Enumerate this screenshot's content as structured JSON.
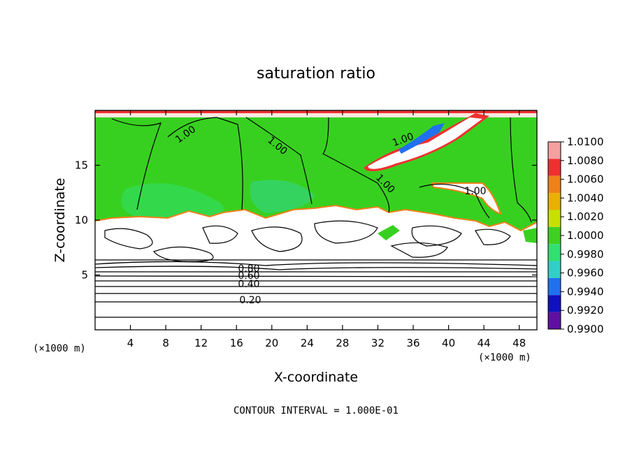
{
  "chart_data": {
    "type": "heatmap",
    "title": "saturation ratio",
    "xlabel": "X-coordinate",
    "ylabel": "Z-coordinate",
    "x_unit_label": "(×1000 m)",
    "x_unit_label_left": "(×1000 m)",
    "xlim": [
      0,
      50
    ],
    "ylim": [
      0,
      20
    ],
    "x_ticks": [
      "4",
      "8",
      "12",
      "16",
      "20",
      "24",
      "28",
      "32",
      "36",
      "40",
      "44",
      "48"
    ],
    "y_ticks": [
      "5",
      "10",
      "15"
    ],
    "footer": "CONTOUR INTERVAL = 1.000E-01",
    "colorbar": {
      "levels": [
        "1.0100",
        "1.0080",
        "1.0060",
        "1.0040",
        "1.0020",
        "1.0000",
        "0.9980",
        "0.9960",
        "0.9940",
        "0.9920",
        "0.9900"
      ],
      "colors": [
        "#f4a0a0",
        "#f03030",
        "#f08018",
        "#e8b000",
        "#c8e000",
        "#40d020",
        "#30e070",
        "#30d0c8",
        "#2070f0",
        "#1010c0",
        "#6010a0"
      ]
    },
    "contour_labels": [
      "1.00",
      "1.00",
      "1.00",
      "1.00",
      "1.00",
      "0.80",
      "0.60",
      "0.40",
      "0.20"
    ],
    "contour_lines_low_levels": [
      0.2,
      0.3,
      0.4,
      0.5,
      0.6,
      0.7,
      0.8,
      0.9
    ]
  }
}
